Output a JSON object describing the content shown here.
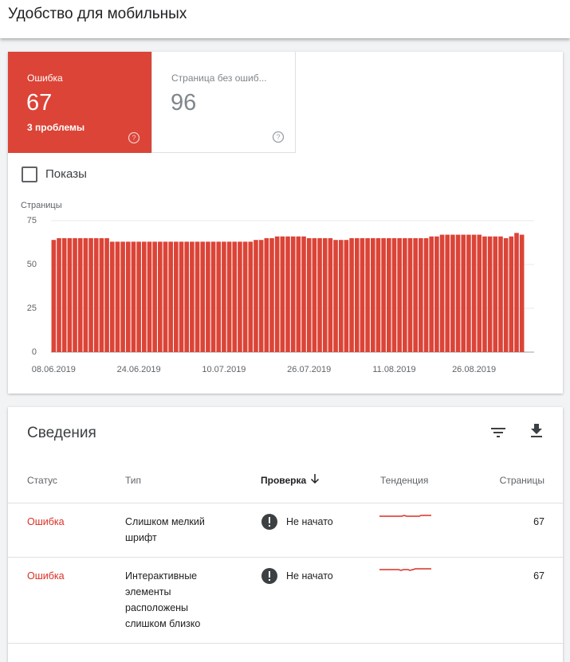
{
  "header": {
    "title": "Удобство для мобильных"
  },
  "summary": {
    "error": {
      "label": "Ошибка",
      "count": 67,
      "issues": "3 проблемы"
    },
    "valid": {
      "label": "Страница без ошиб...",
      "count": 96
    }
  },
  "impressions_checkbox": "Показы",
  "chart_data": {
    "type": "bar",
    "y_label": "Страницы",
    "color": "#db4437",
    "grid": true,
    "ylim": [
      0,
      75
    ],
    "yticks": [
      0,
      25,
      50,
      75
    ],
    "categories": [
      "08.06.2019",
      null,
      null,
      null,
      null,
      null,
      null,
      null,
      null,
      null,
      null,
      null,
      null,
      null,
      null,
      null,
      "24.06.2019",
      null,
      null,
      null,
      null,
      null,
      null,
      null,
      null,
      null,
      null,
      null,
      null,
      null,
      null,
      null,
      "10.07.2019",
      null,
      null,
      null,
      null,
      null,
      null,
      null,
      null,
      null,
      null,
      null,
      null,
      null,
      null,
      null,
      "26.07.2019",
      null,
      null,
      null,
      null,
      null,
      null,
      null,
      null,
      null,
      null,
      null,
      null,
      null,
      null,
      null,
      "11.08.2019",
      null,
      null,
      null,
      null,
      null,
      null,
      null,
      null,
      null,
      null,
      null,
      null,
      null,
      null,
      "26.08.2019",
      null,
      null,
      null,
      null,
      null,
      null,
      null,
      null,
      null
    ],
    "values": [
      64,
      65,
      65,
      65,
      65,
      65,
      65,
      65,
      65,
      65,
      65,
      63,
      63,
      63,
      63,
      63,
      63,
      63,
      63,
      63,
      63,
      63,
      63,
      63,
      63,
      63,
      63,
      63,
      63,
      63,
      63,
      63,
      63,
      63,
      63,
      63,
      63,
      63,
      64,
      64,
      65,
      65,
      66,
      66,
      66,
      66,
      66,
      66,
      65,
      65,
      65,
      65,
      65,
      64,
      64,
      64,
      65,
      65,
      65,
      65,
      65,
      65,
      65,
      65,
      65,
      65,
      65,
      65,
      65,
      65,
      65,
      66,
      66,
      67,
      67,
      67,
      67,
      67,
      67,
      67,
      67,
      66,
      66,
      66,
      66,
      65,
      66,
      68,
      67
    ]
  },
  "details": {
    "title": "Сведения",
    "columns": [
      "Статус",
      "Тип",
      "Проверка",
      "Тенденция",
      "Страницы"
    ],
    "rows": [
      {
        "status": "Ошибка",
        "type": "Слишком мелкий шрифт",
        "check": "Не начато",
        "pages": 67
      },
      {
        "status": "Ошибка",
        "type": "Интерактивные элементы расположены слишком близко",
        "check": "Не начато",
        "pages": 67
      }
    ]
  }
}
